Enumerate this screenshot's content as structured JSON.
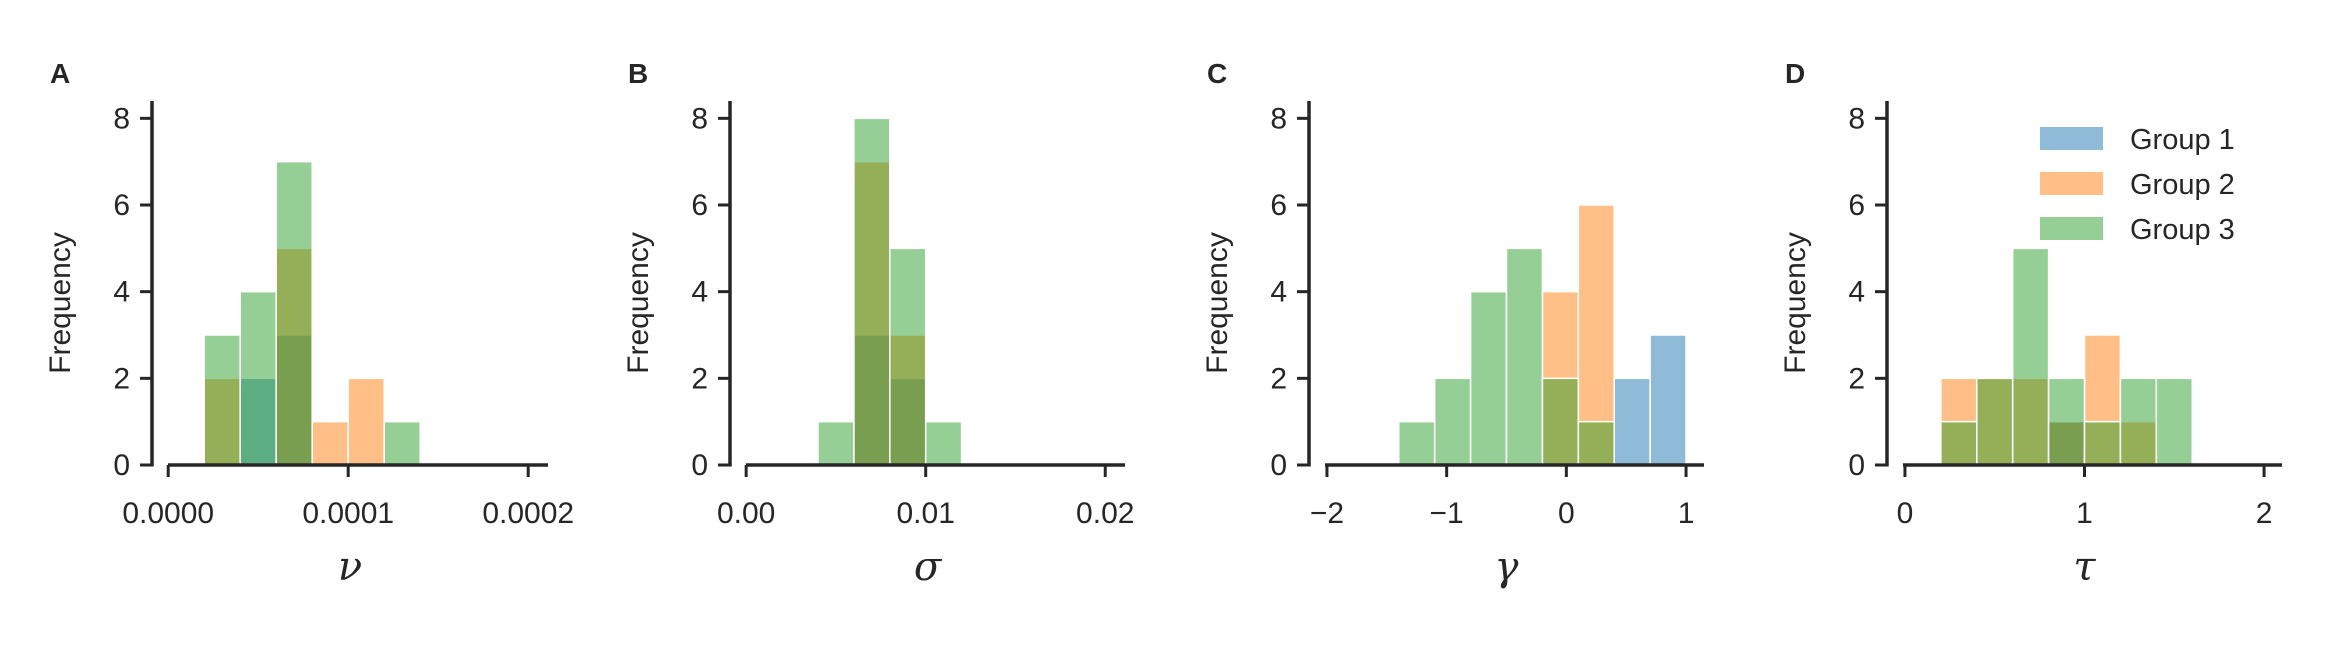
{
  "chart_data": [
    {
      "type": "histogram",
      "panel": "A",
      "xlabel": "ν",
      "ylabel": "Frequency",
      "xlim": [
        -9e-06,
        0.000211
      ],
      "ylim": [
        0,
        8.4
      ],
      "xticks": [
        0,
        0.0001,
        0.0002
      ],
      "xtick_labels": [
        "0.0000",
        "0.0001",
        "0.0002"
      ],
      "yticks": [
        0,
        2,
        4,
        6,
        8
      ],
      "bin_edges": [
        2e-05,
        4e-05,
        6e-05,
        8e-05,
        0.0001,
        0.00012,
        0.00014
      ],
      "series": [
        {
          "name": "Group 1",
          "values": [
            0,
            2,
            3,
            0,
            0,
            0
          ]
        },
        {
          "name": "Group 2",
          "values": [
            2,
            0,
            5,
            1,
            2,
            0
          ]
        },
        {
          "name": "Group 3",
          "values": [
            3,
            4,
            7,
            0,
            0,
            1
          ]
        }
      ]
    },
    {
      "type": "histogram",
      "panel": "B",
      "xlabel": "σ",
      "ylabel": "Frequency",
      "xlim": [
        -0.0009,
        0.0211
      ],
      "ylim": [
        0,
        8.4
      ],
      "xticks": [
        0,
        0.01,
        0.02
      ],
      "xtick_labels": [
        "0.00",
        "0.01",
        "0.02"
      ],
      "yticks": [
        0,
        2,
        4,
        6,
        8
      ],
      "bin_edges": [
        0.004,
        0.006,
        0.008,
        0.01,
        0.012
      ],
      "series": [
        {
          "name": "Group 1",
          "values": [
            0,
            3,
            2,
            0
          ]
        },
        {
          "name": "Group 2",
          "values": [
            0,
            7,
            3,
            0
          ]
        },
        {
          "name": "Group 3",
          "values": [
            1,
            8,
            5,
            1
          ]
        }
      ]
    },
    {
      "type": "histogram",
      "panel": "C",
      "xlabel": "γ",
      "ylabel": "Frequency",
      "xlim": [
        -2.15,
        1.15
      ],
      "ylim": [
        0,
        8.4
      ],
      "xticks": [
        -2,
        -1,
        0,
        1
      ],
      "xtick_labels": [
        "−2",
        "−1",
        "0",
        "1"
      ],
      "yticks": [
        0,
        2,
        4,
        6,
        8
      ],
      "bin_edges": [
        -1.4,
        -1.1,
        -0.8,
        -0.5,
        -0.2,
        0.1,
        0.4,
        0.7,
        1.0
      ],
      "series": [
        {
          "name": "Group 1",
          "values": [
            0,
            0,
            0,
            0,
            0,
            0,
            2,
            3
          ]
        },
        {
          "name": "Group 2",
          "values": [
            0,
            0,
            0,
            0,
            4,
            6,
            0,
            0
          ]
        },
        {
          "name": "Group 3",
          "values": [
            1,
            2,
            4,
            5,
            2,
            1,
            0,
            0
          ]
        }
      ]
    },
    {
      "type": "histogram",
      "panel": "D",
      "xlabel": "τ",
      "ylabel": "Frequency",
      "xlim": [
        -0.1,
        2.1
      ],
      "ylim": [
        0,
        8.4
      ],
      "xticks": [
        0,
        1,
        2
      ],
      "xtick_labels": [
        "0",
        "1",
        "2"
      ],
      "yticks": [
        0,
        2,
        4,
        6,
        8
      ],
      "bin_edges": [
        0.2,
        0.4,
        0.6,
        0.8,
        1.0,
        1.2,
        1.4,
        1.6
      ],
      "series": [
        {
          "name": "Group 1",
          "values": [
            0,
            0,
            0,
            1,
            0,
            0,
            0
          ]
        },
        {
          "name": "Group 2",
          "values": [
            2,
            2,
            2,
            1,
            3,
            1,
            0
          ]
        },
        {
          "name": "Group 3",
          "values": [
            1,
            2,
            5,
            2,
            1,
            2,
            2
          ]
        }
      ],
      "legend": {
        "position": "top-right",
        "entries": [
          "Group 1",
          "Group 2",
          "Group 3"
        ]
      }
    }
  ],
  "colors": {
    "Group 1": "#1f77b4",
    "Group 2": "#ff7f0e",
    "Group 3": "#2ca02c"
  },
  "bar_alpha": 0.5,
  "spine_color": "#262626"
}
